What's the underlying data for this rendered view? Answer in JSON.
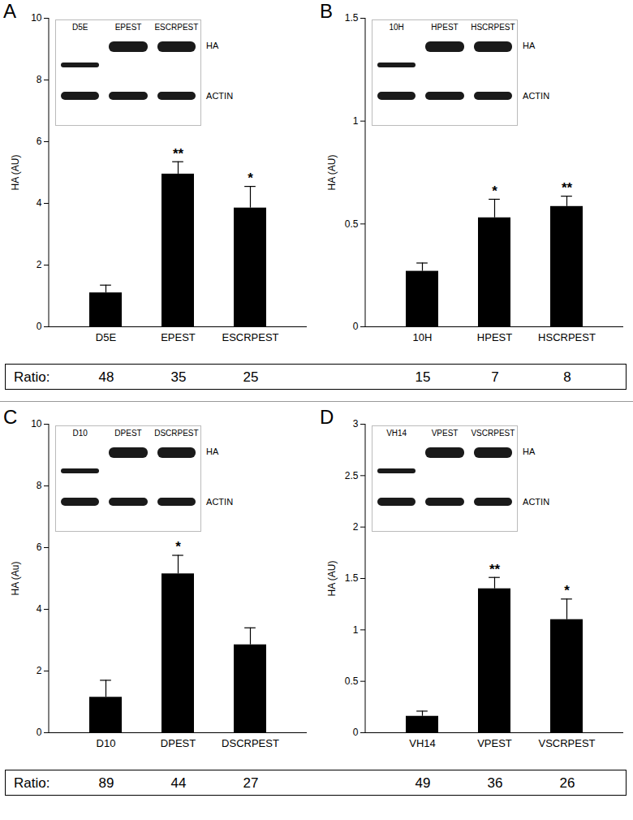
{
  "chart_data": [
    {
      "type": "bar",
      "panel": "A",
      "color": "#000000",
      "categories": [
        "D5E",
        "EPEST",
        "ESCRPEST"
      ],
      "values": [
        1.1,
        4.95,
        3.85
      ],
      "error": [
        0.25,
        0.4,
        0.7
      ],
      "significance": [
        null,
        "**",
        "*"
      ],
      "ylabel": "HA (AU)",
      "ylim": [
        0,
        10
      ],
      "yticks": [
        0,
        2,
        4,
        6,
        8,
        10
      ],
      "ratio_label": "Ratio:",
      "ratios": [
        48,
        35,
        25
      ],
      "blot": {
        "lanes": [
          "D5E",
          "EPEST",
          "ESCRPEST"
        ],
        "rows": [
          "HA",
          "ACTIN"
        ]
      }
    },
    {
      "type": "bar",
      "panel": "B",
      "color": "#000000",
      "categories": [
        "10H",
        "HPEST",
        "HSCRPEST"
      ],
      "values": [
        0.27,
        0.53,
        0.585
      ],
      "error": [
        0.04,
        0.09,
        0.05
      ],
      "significance": [
        null,
        "*",
        "**"
      ],
      "ylabel": "HA (AU)",
      "ylim": [
        0,
        1.5
      ],
      "yticks": [
        0,
        0.5,
        1,
        1.5
      ],
      "ratios": [
        15,
        7,
        8
      ],
      "blot": {
        "lanes": [
          "10H",
          "HPEST",
          "HSCRPEST"
        ],
        "rows": [
          "HA",
          "ACTIN"
        ]
      }
    },
    {
      "type": "bar",
      "panel": "C",
      "color": "#000000",
      "categories": [
        "D10",
        "DPEST",
        "DSCRPEST"
      ],
      "values": [
        1.15,
        5.15,
        2.85
      ],
      "error": [
        0.55,
        0.6,
        0.55
      ],
      "significance": [
        null,
        "*",
        null
      ],
      "ylabel": "HA (Au)",
      "ylim": [
        0,
        10
      ],
      "yticks": [
        0,
        2,
        4,
        6,
        8,
        10
      ],
      "ratio_label": "Ratio:",
      "ratios": [
        89,
        44,
        27
      ],
      "blot": {
        "lanes": [
          "D10",
          "DPEST",
          "DSCRPEST"
        ],
        "rows": [
          "HA",
          "ACTIN"
        ]
      }
    },
    {
      "type": "bar",
      "panel": "D",
      "color": "#000000",
      "categories": [
        "VH14",
        "VPEST",
        "VSCRPEST"
      ],
      "values": [
        0.16,
        1.4,
        1.1
      ],
      "error": [
        0.05,
        0.11,
        0.2
      ],
      "significance": [
        null,
        "**",
        "*"
      ],
      "ylabel": "HA (AU)",
      "ylim": [
        0,
        3
      ],
      "yticks": [
        0,
        0.5,
        1,
        1.5,
        2,
        2.5,
        3
      ],
      "ratios": [
        49,
        36,
        26
      ],
      "blot": {
        "lanes": [
          "VH14",
          "VPEST",
          "VSCRPEST"
        ],
        "rows": [
          "HA",
          "ACTIN"
        ]
      }
    }
  ]
}
